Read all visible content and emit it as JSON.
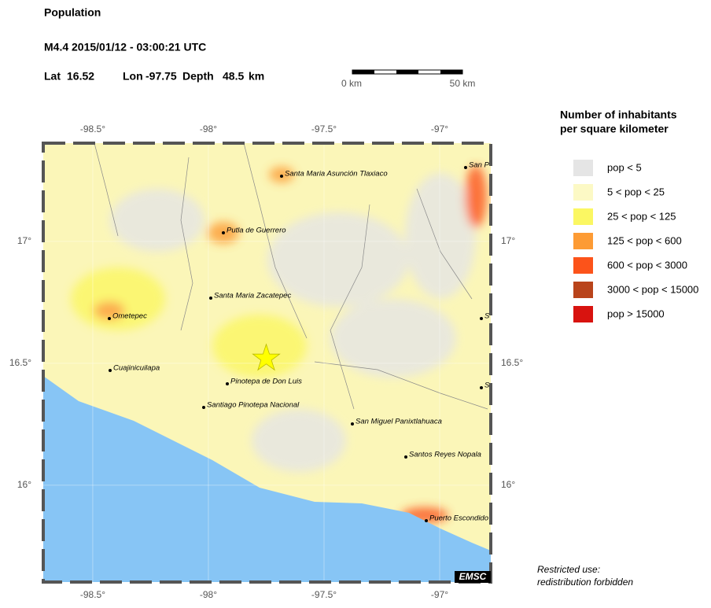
{
  "header": {
    "title": "Population",
    "event": "M4.4  2015/01/12 - 03:00:21 UTC",
    "lat": {
      "label": "Lat",
      "value": 16.52
    },
    "lon": {
      "label": "Lon",
      "value": -97.75
    },
    "depth": {
      "label": "Depth",
      "value": 48.5,
      "unit": "km"
    }
  },
  "scale_bar": {
    "start": "0 km",
    "end": "50 km"
  },
  "map": {
    "xlim": [
      -98.714,
      -96.779
    ],
    "ylim": [
      15.603,
      17.403
    ],
    "xticks": [
      {
        "value": -98.5,
        "label": "-98.5°"
      },
      {
        "value": -98,
        "label": "-98°"
      },
      {
        "value": -97.5,
        "label": "-97.5°"
      },
      {
        "value": -97,
        "label": "-97°"
      }
    ],
    "yticks": [
      {
        "value": 16,
        "label": "16°"
      },
      {
        "value": 16.5,
        "label": "16.5°"
      },
      {
        "value": 17,
        "label": "17°"
      }
    ],
    "cities": [
      "Santa Maria Asunción Tlaxiaco",
      "Putla de Guerrero",
      "Santa Maria Zacatepec",
      "Ometepec",
      "Cuajinicuilapa",
      "Pinotepa de Don Luis",
      "Santiago Pinotepa Nacional",
      "San Miguel Panixtlahuaca",
      "Santos Reyes Nopala",
      "Puerto Escondido",
      "San P",
      "S",
      "S"
    ],
    "watermark": "EMSC"
  },
  "legend": {
    "title": [
      "Number of inhabitants",
      "per square kilometer"
    ],
    "items": [
      {
        "label": "pop < 5",
        "color": "#e5e5e5"
      },
      {
        "label": "5 < pop < 25",
        "color": "#fcf9c5"
      },
      {
        "label": "25 < pop < 125",
        "color": "#fbf762"
      },
      {
        "label": "125 < pop < 600",
        "color": "#fd9b34"
      },
      {
        "label": "600 < pop < 3000",
        "color": "#fc531a"
      },
      {
        "label": "3000 < pop < 15000",
        "color": "#b9441b"
      },
      {
        "label": "pop > 15000",
        "color": "#d8130f"
      }
    ]
  },
  "footer": [
    "Restricted use:",
    "redistribution forbidden"
  ]
}
